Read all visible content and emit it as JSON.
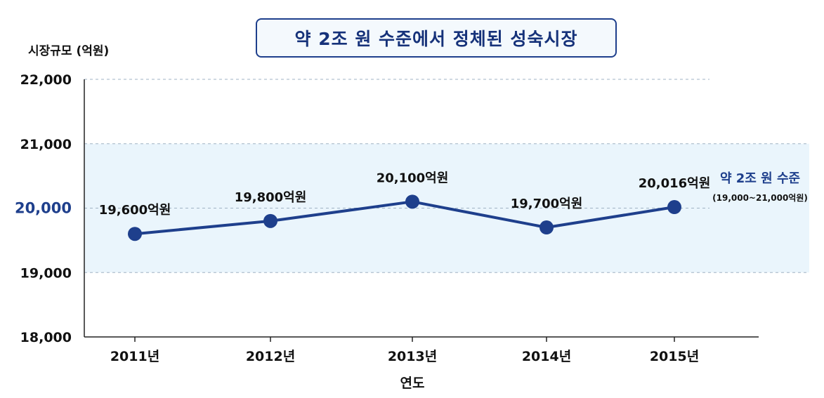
{
  "chart_data": {
    "type": "line",
    "title": "약 2조 원 수준에서 정체된 성숙시장",
    "ylabel": "시장규모 (억원)",
    "xlabel": "연도",
    "categories": [
      "2011년",
      "2012년",
      "2013년",
      "2014년",
      "2015년"
    ],
    "values": [
      19600,
      19800,
      20100,
      19700,
      20016
    ],
    "data_labels": [
      "19,600억원",
      "19,800억원",
      "20,100억원",
      "19,700억원",
      "20,016억원"
    ],
    "ylim": [
      18000,
      22000
    ],
    "yticks": [
      18000,
      19000,
      20000,
      21000,
      22000
    ],
    "ytick_labels": [
      "18,000",
      "19,000",
      "20,000",
      "21,000",
      "22,000"
    ],
    "highlight_band": {
      "range": [
        19000,
        21000
      ],
      "label": "약 2조 원 수준",
      "sublabel": "(19,000~21,000억원)"
    },
    "grid": "dashed horizontal",
    "colors": {
      "line": "#1e3f8c",
      "band": "#eaf5fc",
      "highlight_tick": "#1e3f8c",
      "annotation": "#1e3f8c"
    }
  }
}
